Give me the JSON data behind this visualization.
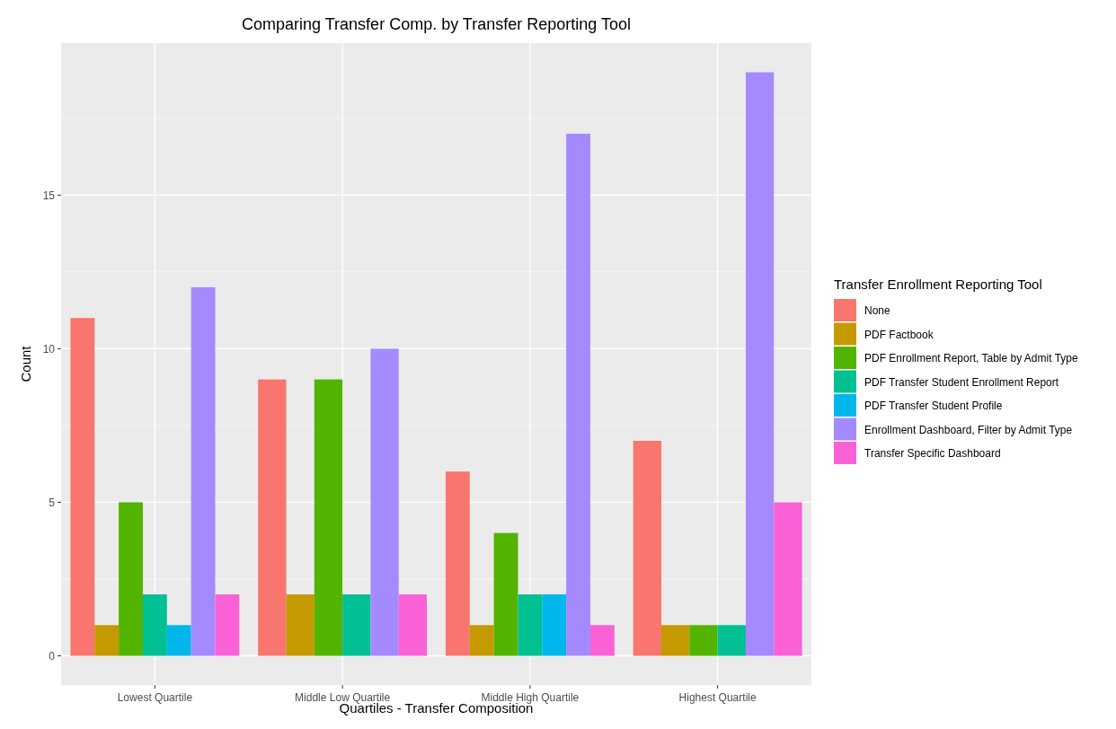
{
  "chart_data": {
    "type": "bar",
    "title": "Comparing Transfer Comp. by Transfer Reporting Tool",
    "xlabel": "Quartiles - Transfer Composition",
    "ylabel": "Count",
    "legend_title": "Transfer Enrollment Reporting Tool",
    "categories": [
      "Lowest Quartile",
      "Middle Low Quartile",
      "Middle High Quartile",
      "Highest Quartile"
    ],
    "series": [
      {
        "name": "None",
        "color": "#f8766d",
        "values": [
          11,
          9,
          6,
          7
        ]
      },
      {
        "name": "PDF Factbook",
        "color": "#c49a00",
        "values": [
          1,
          2,
          1,
          1
        ]
      },
      {
        "name": "PDF Enrollment Report, Table by Admit Type",
        "color": "#53b400",
        "values": [
          5,
          9,
          4,
          1
        ]
      },
      {
        "name": "PDF Transfer Student Enrollment Report",
        "color": "#00c094",
        "values": [
          2,
          2,
          2,
          1
        ]
      },
      {
        "name": "PDF Transfer Student Profile",
        "color": "#00b6eb",
        "values": [
          1,
          null,
          2,
          null
        ]
      },
      {
        "name": "Enrollment Dashboard, Filter by Admit Type",
        "color": "#a58aff",
        "values": [
          12,
          10,
          17,
          19
        ]
      },
      {
        "name": "Transfer Specific Dashboard",
        "color": "#fb61d7",
        "values": [
          2,
          2,
          1,
          5
        ]
      }
    ],
    "ylim": [
      -0.95,
      19.95
    ],
    "yticks": [
      0,
      5,
      10,
      15
    ],
    "grid": true,
    "legend": "right"
  }
}
